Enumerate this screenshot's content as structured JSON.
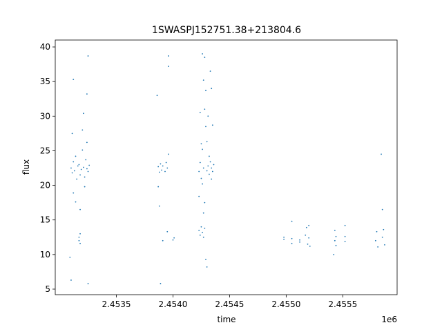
{
  "chart_data": {
    "type": "scatter",
    "title": "1SWASPJ152751.38+213804.6",
    "x_label": "time",
    "y_label": "flux",
    "x_offset_label": "1e6",
    "color": "#1f77b4",
    "xlim": [
      2.45296,
      2.45598
    ],
    "ylim": [
      4.2,
      41.0
    ],
    "xticks": [
      2.4535,
      {
        "value": 2.454,
        "label": "2.4540"
      },
      2.4545,
      {
        "value": 2.455,
        "label": "2.4550"
      },
      2.4555
    ],
    "yticks": [
      5,
      10,
      15,
      20,
      25,
      30,
      35,
      40
    ],
    "x": [
      2.4531,
      2.45311,
      2.45312,
      2.45313,
      2.45314,
      2.45315,
      2.45316,
      2.45317,
      2.45318,
      2.45319,
      2.4532,
      2.45321,
      2.45322,
      2.45323,
      2.45324,
      2.45325,
      2.45326,
      2.45311,
      2.45312,
      2.45314,
      2.45309,
      2.4531,
      2.45312,
      2.45318,
      2.4532,
      2.45322,
      2.45324,
      2.45317,
      2.45318,
      2.45317,
      2.45318,
      2.45325,
      2.45324,
      2.45325,
      2.45321,
      2.45387,
      2.45388,
      2.45389,
      2.4539,
      2.45391,
      2.45393,
      2.45394,
      2.45395,
      2.45396,
      2.45387,
      2.45386,
      2.45389,
      2.45396,
      2.45396,
      2.45395,
      2.454,
      2.45401,
      2.45391,
      2.45388,
      2.45423,
      2.45424,
      2.45425,
      2.45426,
      2.45423,
      2.45424,
      2.45425,
      2.45426,
      2.45427,
      2.45428,
      2.45427,
      2.45428,
      2.45426,
      2.45427,
      2.45428,
      2.45429,
      2.45425,
      2.45424,
      2.45429,
      2.45428,
      2.45427,
      2.45429,
      2.4543,
      2.45423,
      2.45426,
      2.4543,
      2.45431,
      2.45432,
      2.45433,
      2.45434,
      2.45435,
      2.45436,
      2.45432,
      2.45434,
      2.45433,
      2.45434,
      2.45431,
      2.45435,
      2.4543,
      2.45498,
      2.45498,
      2.45505,
      2.45505,
      2.45505,
      2.45512,
      2.45512,
      2.45517,
      2.45518,
      2.45519,
      2.4552,
      2.4552,
      2.45521,
      2.45543,
      2.45543,
      2.45544,
      2.45544,
      2.45542,
      2.45552,
      2.45552,
      2.45552,
      2.45579,
      2.4558,
      2.45581,
      2.45585,
      2.45586,
      2.45587,
      2.45585,
      2.45584
    ],
    "values": [
      22.5,
      21.8,
      23.4,
      22.1,
      24.2,
      20.9,
      22.8,
      23.0,
      21.5,
      22.3,
      25.1,
      22.6,
      21.2,
      23.7,
      22.4,
      22.0,
      22.9,
      27.5,
      18.9,
      17.6,
      9.6,
      6.3,
      35.3,
      16.5,
      28.0,
      19.8,
      26.2,
      12.5,
      11.6,
      12.0,
      13.0,
      38.7,
      33.2,
      5.8,
      30.4,
      22.7,
      21.9,
      23.1,
      22.2,
      22.8,
      22.0,
      23.3,
      22.5,
      24.5,
      19.8,
      33.0,
      5.8,
      38.7,
      37.2,
      13.3,
      12.1,
      12.4,
      12.0,
      17.0,
      22.0,
      23.3,
      21.0,
      20.2,
      13.5,
      12.8,
      14.0,
      13.2,
      12.5,
      13.8,
      22.5,
      38.5,
      39.0,
      35.2,
      31.0,
      28.5,
      26.0,
      30.5,
      33.7,
      17.5,
      16.0,
      9.3,
      8.2,
      18.4,
      25.2,
      22.1,
      22.8,
      21.6,
      23.4,
      22.5,
      22.0,
      23.0,
      24.2,
      20.9,
      36.5,
      34.0,
      30.0,
      28.7,
      26.3,
      12.2,
      12.5,
      12.3,
      14.8,
      11.6,
      12.1,
      11.8,
      12.8,
      13.9,
      11.5,
      12.4,
      14.2,
      11.2,
      12.0,
      13.5,
      11.3,
      12.6,
      10.0,
      12.6,
      14.2,
      11.9,
      12.0,
      13.3,
      11.1,
      12.5,
      13.6,
      11.4,
      16.5,
      24.5
    ]
  }
}
